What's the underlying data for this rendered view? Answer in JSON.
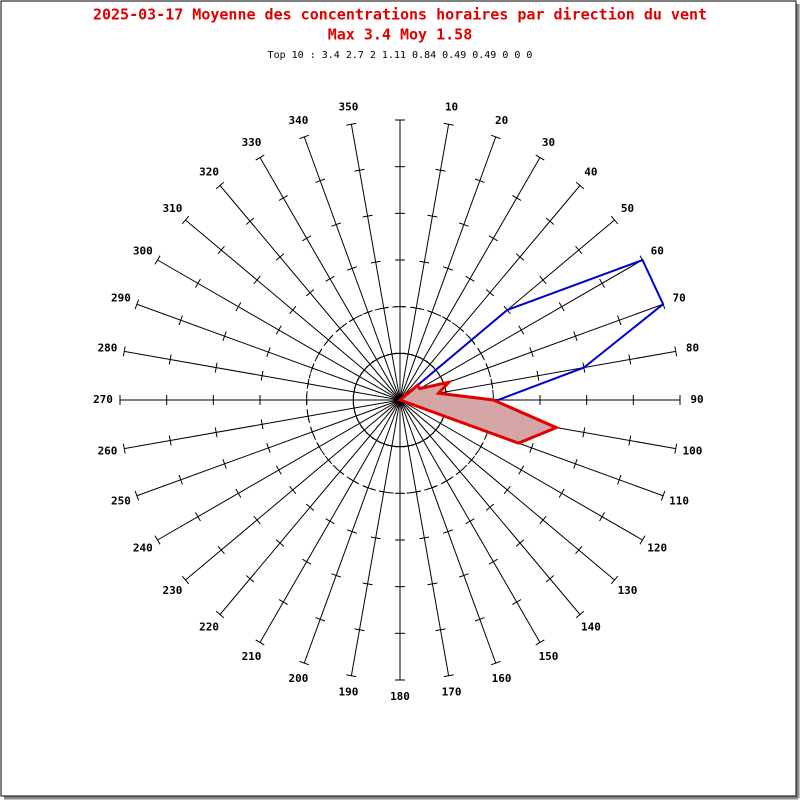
{
  "chart_data": {
    "type": "polar",
    "title": "2025-03-17 Moyenne des concentrations horaires par direction du vent",
    "subtitle": "Max 3.4 Moy 1.58",
    "note": "Top 10 : 3.4 2.7 2 1.11 0.84 0.49 0.49 0 0 0",
    "categories": [
      null,
      "10",
      "20",
      "30",
      "40",
      "50",
      "60",
      "70",
      "80",
      "90",
      "100",
      "110",
      "120",
      "130",
      "140",
      "150",
      "160",
      "170",
      "180",
      "190",
      "200",
      "210",
      "220",
      "230",
      "240",
      "250",
      "260",
      "270",
      "280",
      "290",
      "300",
      "310",
      "320",
      "330",
      "340",
      "350"
    ],
    "angles": [
      0,
      10,
      20,
      30,
      40,
      50,
      60,
      70,
      80,
      90,
      100,
      110,
      120,
      130,
      140,
      150,
      160,
      170,
      180,
      190,
      200,
      210,
      220,
      230,
      240,
      250,
      260,
      270,
      280,
      290,
      300,
      310,
      320,
      330,
      340,
      350
    ],
    "rlim": [
      0,
      6
    ],
    "rticks": [
      1,
      2,
      3,
      4,
      5,
      6
    ],
    "rings": [
      {
        "r": 1,
        "dashed": false
      },
      {
        "r": 2,
        "dashed": true
      }
    ],
    "series": [
      {
        "color": "#0000cc",
        "filled": false,
        "values": [
          0,
          0,
          0,
          0,
          0,
          3.0,
          6.0,
          6.0,
          4.0,
          2.1,
          0,
          0,
          0,
          0,
          0,
          0,
          0,
          0,
          0,
          0,
          0,
          0,
          0,
          0,
          0,
          0,
          0,
          0,
          0,
          0,
          0,
          0,
          0,
          0,
          0,
          0
        ]
      },
      {
        "color": "#e00000",
        "fill": "#d4a6a6",
        "filled": true,
        "values": [
          0,
          0,
          0,
          0,
          0,
          0.49,
          0.49,
          1.11,
          0.84,
          2,
          3.4,
          2.7,
          0,
          0,
          0,
          0,
          0,
          0,
          0,
          0,
          0,
          0,
          0,
          0,
          0,
          0,
          0,
          0,
          0,
          0,
          0,
          0,
          0,
          0,
          0,
          0
        ]
      }
    ]
  }
}
